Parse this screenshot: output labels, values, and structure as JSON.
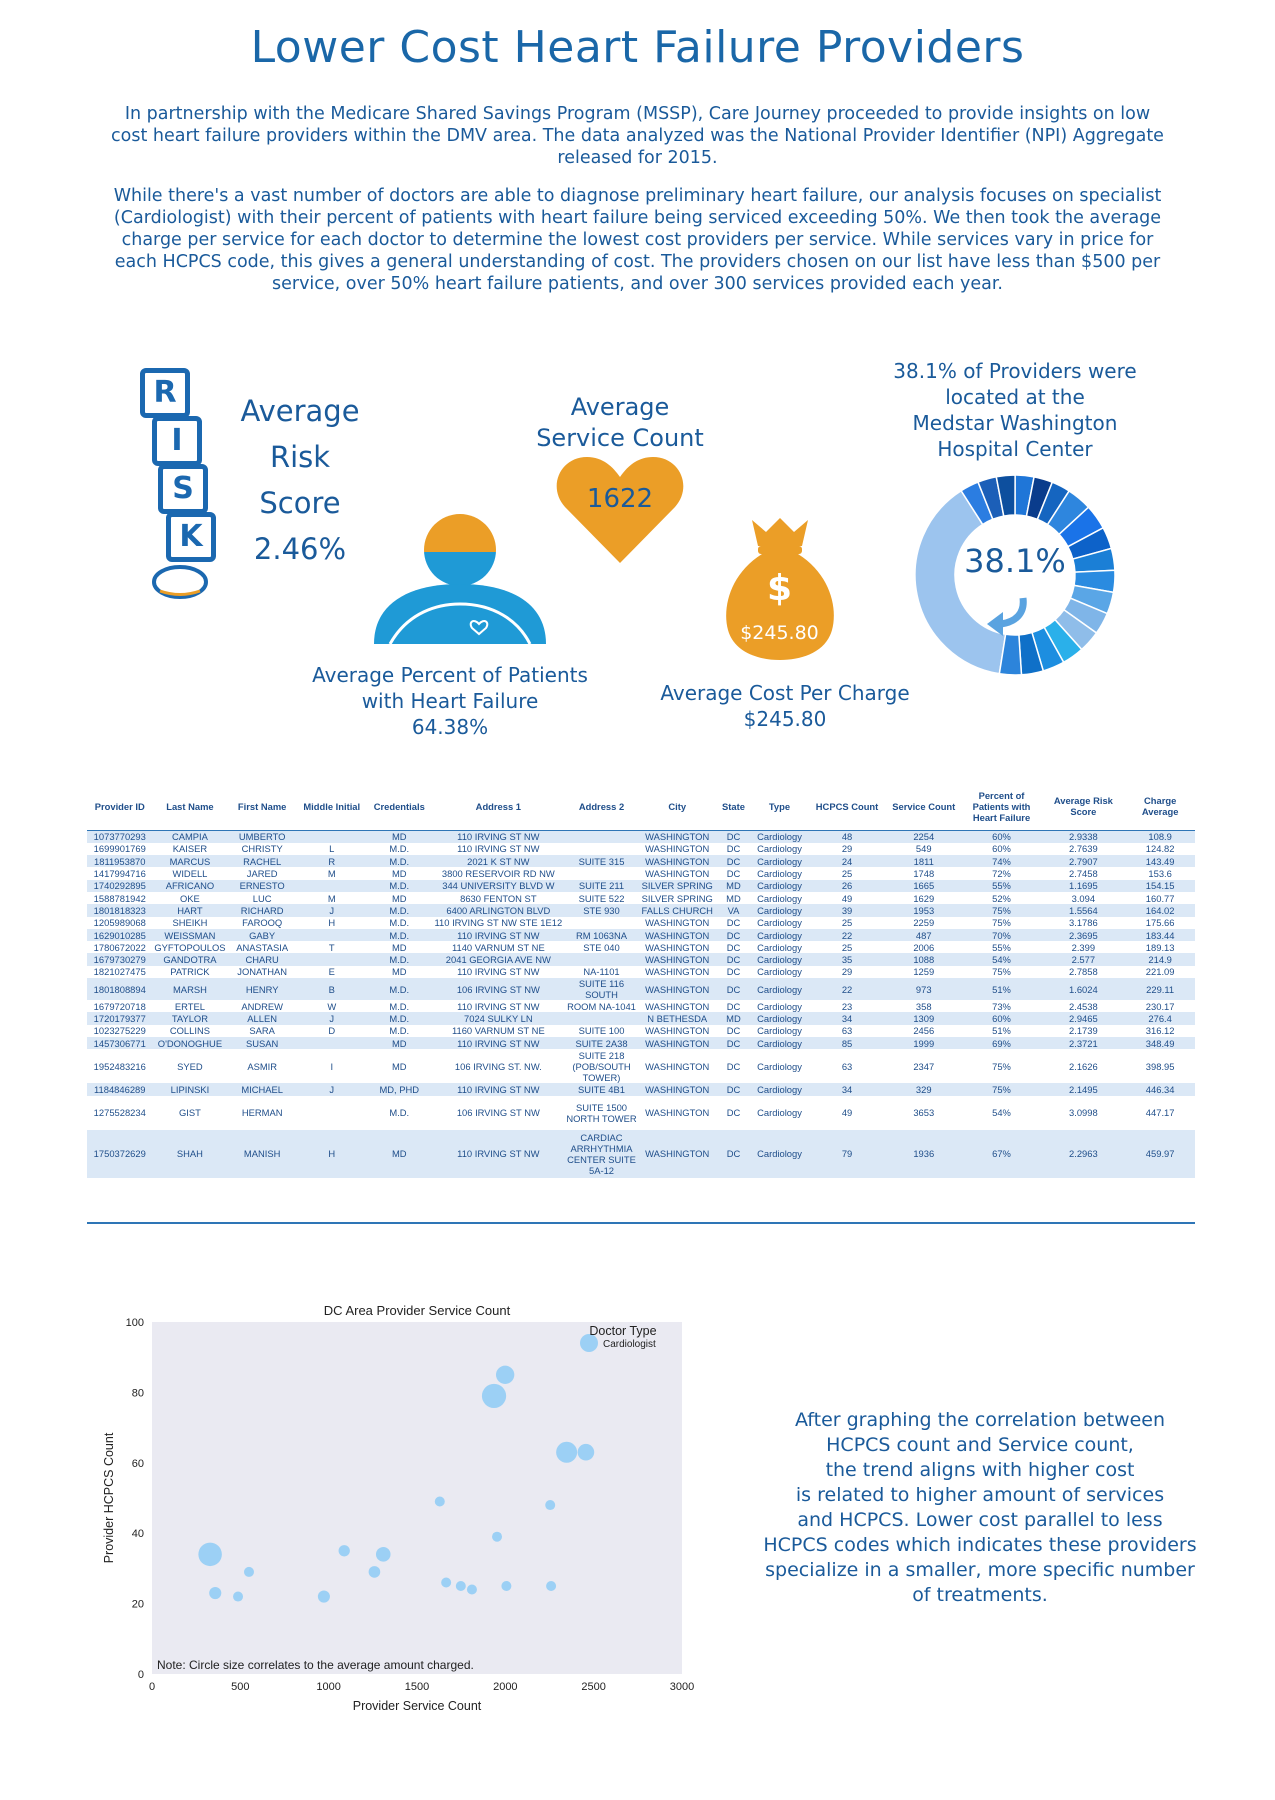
{
  "header": {
    "title": "Lower Cost Heart Failure Providers",
    "paragraph1": "In partnership with the Medicare Shared Savings Program (MSSP), Care Journey proceeded to provide insights on low cost heart failure providers within the DMV area.  The data analyzed was the National Provider Identifier (NPI) Aggregate released for 2015.",
    "paragraph2": "While there's a vast number of doctors are able to diagnose preliminary heart failure, our analysis focuses on specialist (Cardiologist) with their percent of patients with heart failure being serviced exceeding 50%.  We then took the average charge per service for each doctor to determine the lowest cost providers per service.  While services vary in price for each HCPCS code, this gives a general understanding of cost.  The providers chosen on our list have less than $500 per service, over 50% heart failure patients, and over 300 services provided each year."
  },
  "stats": {
    "risk_letters": [
      "R",
      "I",
      "S",
      "K"
    ],
    "risk_label_1": "Average",
    "risk_label_2": "Risk",
    "risk_label_3": "Score",
    "risk_value": "2.46%",
    "service_label_1": "Average",
    "service_label_2": "Service Count",
    "service_value": "1622",
    "pct_label_1": "Average Percent of Patients",
    "pct_label_2": "with Heart Failure",
    "pct_value": "64.38%",
    "cost_symbol": "$",
    "cost_bag_value": "$245.80",
    "cost_label": "Average Cost Per Charge",
    "cost_value": "$245.80",
    "medstar_label_1": "38.1% of Providers were",
    "medstar_label_2": "located at the",
    "medstar_label_3": "Medstar Washington",
    "medstar_label_4": "Hospital Center",
    "medstar_donut_value": "38.1%",
    "medstar_fraction": 0.381
  },
  "colors": {
    "orange": "#eb9e27",
    "blue": "#1b68b0",
    "light_blue": "#9fc4ec",
    "text_blue": "#1a5a9a"
  },
  "table": {
    "headers": [
      "Provider ID",
      "Last Name",
      "First Name",
      "Middle Initial",
      "Credentials",
      "Address 1",
      "Address 2",
      "City",
      "State",
      "Type",
      "HCPCS Count",
      "Service Count",
      "Percent of Patients with Heart Failure",
      "Average Risk Score",
      "Charge Average"
    ],
    "rows": [
      [
        "1073770293",
        "CAMPIA",
        "UMBERTO",
        "",
        "MD",
        "110 IRVING ST NW",
        "",
        "WASHINGTON",
        "DC",
        "Cardiology",
        "48",
        "2254",
        "60%",
        "2.9338",
        "108.9"
      ],
      [
        "1699901769",
        "KAISER",
        "CHRISTY",
        "L",
        "M.D.",
        "110 IRVING ST NW",
        "",
        "WASHINGTON",
        "DC",
        "Cardiology",
        "29",
        "549",
        "60%",
        "2.7639",
        "124.82"
      ],
      [
        "1811953870",
        "MARCUS",
        "RACHEL",
        "R",
        "M.D.",
        "2021 K ST NW",
        "SUITE 315",
        "WASHINGTON",
        "DC",
        "Cardiology",
        "24",
        "1811",
        "74%",
        "2.7907",
        "143.49"
      ],
      [
        "1417994716",
        "WIDELL",
        "JARED",
        "M",
        "MD",
        "3800 RESERVOIR RD NW",
        "",
        "WASHINGTON",
        "DC",
        "Cardiology",
        "25",
        "1748",
        "72%",
        "2.7458",
        "153.6"
      ],
      [
        "1740292895",
        "AFRICANO",
        "ERNESTO",
        "",
        "M.D.",
        "344 UNIVERSITY BLVD W",
        "SUITE 211",
        "SILVER SPRING",
        "MD",
        "Cardiology",
        "26",
        "1665",
        "55%",
        "1.1695",
        "154.15"
      ],
      [
        "1588781942",
        "OKE",
        "LUC",
        "M",
        "MD",
        "8630 FENTON ST",
        "SUITE 522",
        "SILVER SPRING",
        "MD",
        "Cardiology",
        "49",
        "1629",
        "52%",
        "3.094",
        "160.77"
      ],
      [
        "1801818323",
        "HART",
        "RICHARD",
        "J",
        "M.D.",
        "6400 ARLINGTON BLVD",
        "STE 930",
        "FALLS CHURCH",
        "VA",
        "Cardiology",
        "39",
        "1953",
        "75%",
        "1.5564",
        "164.02"
      ],
      [
        "1205989068",
        "SHEIKH",
        "FAROOQ",
        "H",
        "M.D.",
        "110 IRVING ST NW STE 1E12",
        "",
        "WASHINGTON",
        "DC",
        "Cardiology",
        "25",
        "2259",
        "75%",
        "3.1786",
        "175.66"
      ],
      [
        "1629010285",
        "WEISSMAN",
        "GABY",
        "",
        "M.D.",
        "110 IRVING ST NW",
        "RM 1063NA",
        "WASHINGTON",
        "DC",
        "Cardiology",
        "22",
        "487",
        "70%",
        "2.3695",
        "183.44"
      ],
      [
        "1780672022",
        "GYFTOPOULOS",
        "ANASTASIA",
        "T",
        "MD",
        "1140 VARNUM ST NE",
        "STE 040",
        "WASHINGTON",
        "DC",
        "Cardiology",
        "25",
        "2006",
        "55%",
        "2.399",
        "189.13"
      ],
      [
        "1679730279",
        "GANDOTRA",
        "CHARU",
        "",
        "M.D.",
        "2041 GEORGIA AVE NW",
        "",
        "WASHINGTON",
        "DC",
        "Cardiology",
        "35",
        "1088",
        "54%",
        "2.577",
        "214.9"
      ],
      [
        "1821027475",
        "PATRICK",
        "JONATHAN",
        "E",
        "MD",
        "110 IRVING ST NW",
        "NA-1101",
        "WASHINGTON",
        "DC",
        "Cardiology",
        "29",
        "1259",
        "75%",
        "2.7858",
        "221.09"
      ],
      [
        "1801808894",
        "MARSH",
        "HENRY",
        "B",
        "M.D.",
        "106 IRVING ST NW",
        "SUITE 116 SOUTH",
        "WASHINGTON",
        "DC",
        "Cardiology",
        "22",
        "973",
        "51%",
        "1.6024",
        "229.11"
      ],
      [
        "1679720718",
        "ERTEL",
        "ANDREW",
        "W",
        "M.D.",
        "110 IRVING ST NW",
        "ROOM NA-1041",
        "WASHINGTON",
        "DC",
        "Cardiology",
        "23",
        "358",
        "73%",
        "2.4538",
        "230.17"
      ],
      [
        "1720179377",
        "TAYLOR",
        "ALLEN",
        "J",
        "M.D.",
        "7024 SULKY LN",
        "",
        "N BETHESDA",
        "MD",
        "Cardiology",
        "34",
        "1309",
        "60%",
        "2.9465",
        "276.4"
      ],
      [
        "1023275229",
        "COLLINS",
        "SARA",
        "D",
        "M.D.",
        "1160 VARNUM ST NE",
        "SUITE 100",
        "WASHINGTON",
        "DC",
        "Cardiology",
        "63",
        "2456",
        "51%",
        "2.1739",
        "316.12"
      ],
      [
        "1457306771",
        "O'DONOGHUE",
        "SUSAN",
        "",
        "MD",
        "110 IRVING ST NW",
        "SUITE 2A38",
        "WASHINGTON",
        "DC",
        "Cardiology",
        "85",
        "1999",
        "69%",
        "2.3721",
        "348.49"
      ],
      [
        "1952483216",
        "SYED",
        "ASMIR",
        "I",
        "MD",
        "106 IRVING ST. NW.",
        "SUITE 218 (POB/SOUTH TOWER)",
        "WASHINGTON",
        "DC",
        "Cardiology",
        "63",
        "2347",
        "75%",
        "2.1626",
        "398.95"
      ],
      [
        "1184846289",
        "LIPINSKI",
        "MICHAEL",
        "J",
        "MD, PHD",
        "110 IRVING ST NW",
        "SUITE 4B1",
        "WASHINGTON",
        "DC",
        "Cardiology",
        "34",
        "329",
        "75%",
        "2.1495",
        "446.34"
      ],
      [
        "1275528234",
        "GIST",
        "HERMAN",
        "",
        "M.D.",
        "106 IRVING ST NW",
        "SUITE 1500 NORTH TOWER",
        "WASHINGTON",
        "DC",
        "Cardiology",
        "49",
        "3653",
        "54%",
        "3.0998",
        "447.17"
      ],
      [
        "1750372629",
        "SHAH",
        "MANISH",
        "H",
        "MD",
        "110 IRVING ST NW",
        "CARDIAC ARRHYTHMIA CENTER SUITE 5A-12",
        "WASHINGTON",
        "DC",
        "Cardiology",
        "79",
        "1936",
        "67%",
        "2.2963",
        "459.97"
      ]
    ]
  },
  "chart_data": {
    "type": "scatter",
    "title": "DC Area Provider Service Count",
    "xlabel": "Provider Service Count",
    "ylabel": "Provider HCPCS Count",
    "xlim": [
      0,
      3000
    ],
    "ylim": [
      0,
      100
    ],
    "xticks": [
      "0",
      "500",
      "1000",
      "1500",
      "2000",
      "2500",
      "3000"
    ],
    "yticks": [
      "0",
      "20",
      "40",
      "60",
      "80",
      "100"
    ],
    "legend_title": "Doctor Type",
    "legend_position": "top-right",
    "series": [
      {
        "name": "Cardiologist",
        "color": "#9cd0f5",
        "points": [
          {
            "x": 2254,
            "y": 48,
            "size": 108.9
          },
          {
            "x": 549,
            "y": 29,
            "size": 124.82
          },
          {
            "x": 1811,
            "y": 24,
            "size": 143.49
          },
          {
            "x": 1748,
            "y": 25,
            "size": 153.6
          },
          {
            "x": 1665,
            "y": 26,
            "size": 154.15
          },
          {
            "x": 1629,
            "y": 49,
            "size": 160.77
          },
          {
            "x": 1953,
            "y": 39,
            "size": 164.02
          },
          {
            "x": 2259,
            "y": 25,
            "size": 175.66
          },
          {
            "x": 487,
            "y": 22,
            "size": 183.44
          },
          {
            "x": 2006,
            "y": 25,
            "size": 189.13
          },
          {
            "x": 1088,
            "y": 35,
            "size": 214.9
          },
          {
            "x": 1259,
            "y": 29,
            "size": 221.09
          },
          {
            "x": 973,
            "y": 22,
            "size": 229.11
          },
          {
            "x": 358,
            "y": 23,
            "size": 230.17
          },
          {
            "x": 1309,
            "y": 34,
            "size": 276.4
          },
          {
            "x": 2456,
            "y": 63,
            "size": 316.12
          },
          {
            "x": 1999,
            "y": 85,
            "size": 348.49
          },
          {
            "x": 2347,
            "y": 63,
            "size": 398.95
          },
          {
            "x": 329,
            "y": 34,
            "size": 446.34
          },
          {
            "x": 1936,
            "y": 79,
            "size": 459.97
          }
        ]
      }
    ],
    "note": "Note: Circle size correlates to the average amount charged.",
    "grid": false
  },
  "trend_text": [
    "After graphing the correlation between",
    "HCPCS count and Service count,",
    "the trend aligns with higher cost",
    "is related to higher amount of services",
    "and HCPCS.  Lower cost parallel to less",
    "HCPCS codes which indicates these providers",
    "specialize in a smaller, more specific number",
    "of treatments."
  ]
}
